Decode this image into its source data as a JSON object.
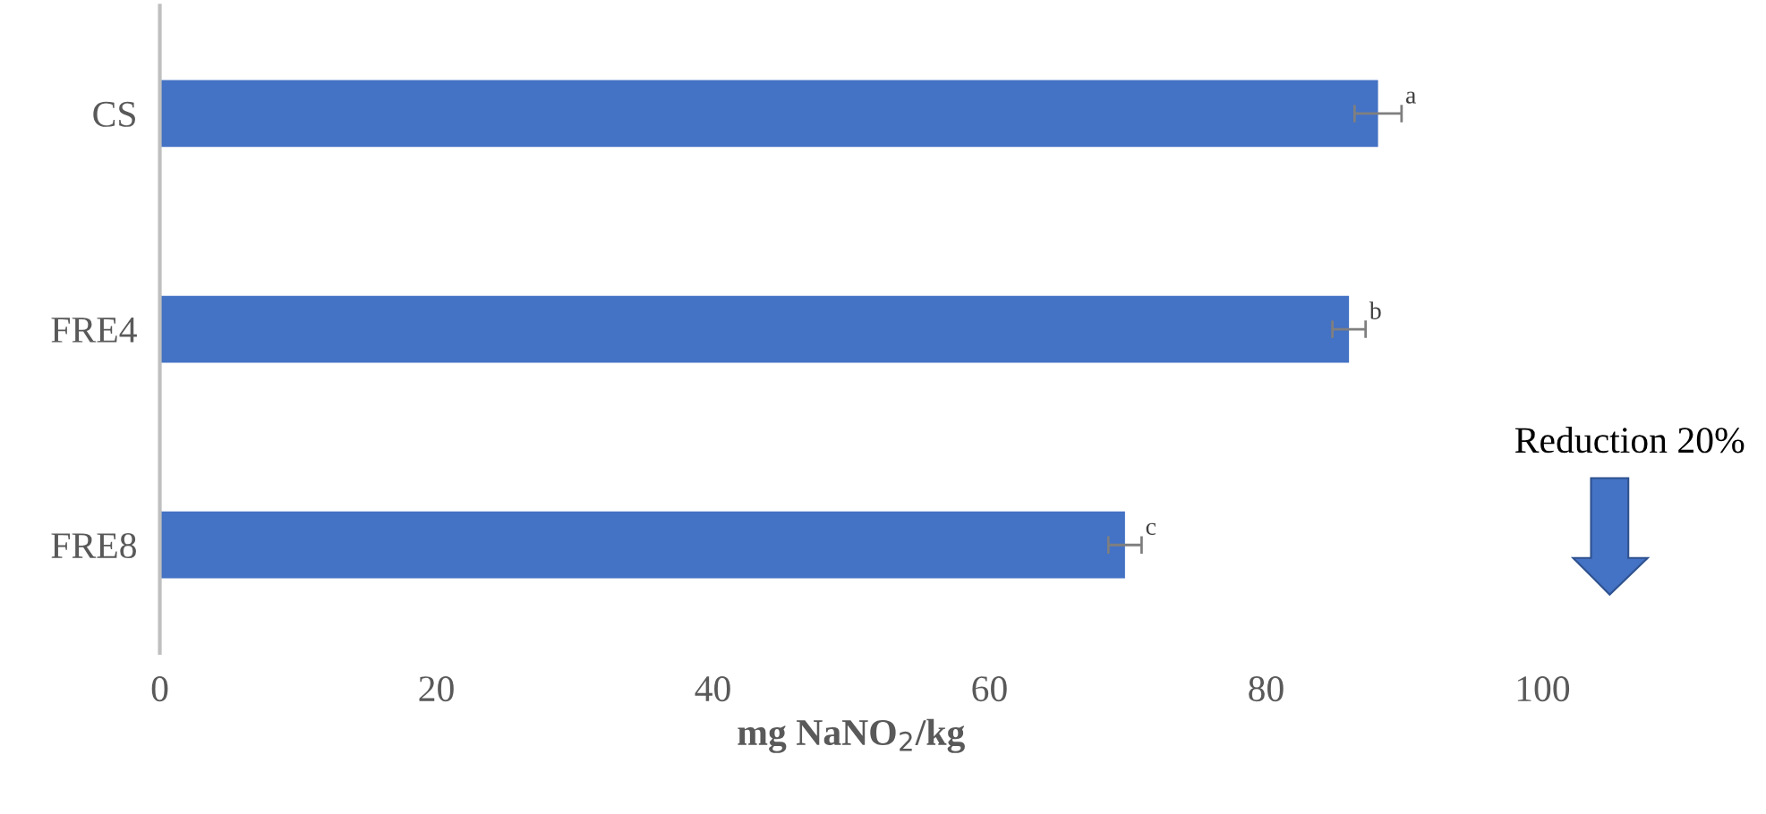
{
  "chart_data": {
    "type": "bar",
    "orientation": "horizontal",
    "xlabel": "mg NaNO$_{2}$/kg",
    "categories": [
      "CS",
      "FRE4",
      "FRE8"
    ],
    "values": [
      88.1,
      86.0,
      69.8
    ],
    "errors": [
      1.7,
      1.2,
      1.2
    ],
    "color": "#4472c4",
    "xlim": [
      0,
      100
    ],
    "xticks": [
      0,
      20,
      40,
      60,
      80,
      100
    ],
    "grid": false,
    "legend": false,
    "annotations": [
      {
        "text": "a",
        "x": 89.8,
        "y": "CS"
      },
      {
        "text": "b",
        "x": 87.2,
        "y": "FRE4"
      },
      {
        "text": "c",
        "x": 71.0,
        "y": "FRE8"
      },
      "Reduction 20%"
    ]
  }
}
